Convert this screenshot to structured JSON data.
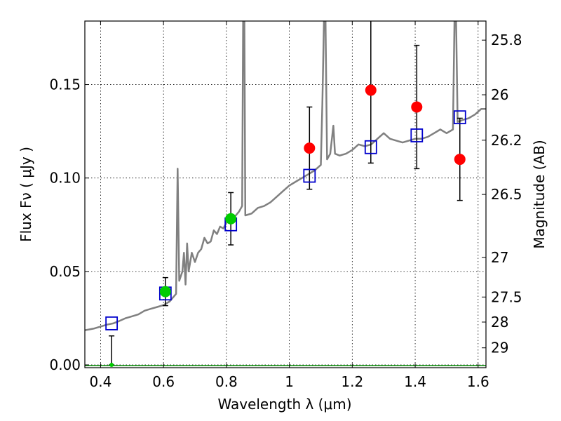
{
  "chart_data": {
    "type": "scatter",
    "xlabel": "Wavelength  λ (μm)",
    "ylabel": "Flux  Fν  ( μJy )",
    "ylabel_right": "Magnitude (AB)",
    "xlim": [
      0.35,
      1.625
    ],
    "ylim": [
      -0.0015,
      0.184
    ],
    "grid": true,
    "x_ticks": [
      {
        "value": 0.4,
        "label": "0.4"
      },
      {
        "value": 0.6,
        "label": "0.6"
      },
      {
        "value": 0.8,
        "label": "0.8"
      },
      {
        "value": 1.0,
        "label": "1"
      },
      {
        "value": 1.2,
        "label": "1.2"
      },
      {
        "value": 1.4,
        "label": "1.4"
      },
      {
        "value": 1.6,
        "label": "1.6"
      }
    ],
    "y_ticks": [
      {
        "value": 0.0,
        "label": "0.00"
      },
      {
        "value": 0.05,
        "label": "0.05"
      },
      {
        "value": 0.1,
        "label": "0.10"
      },
      {
        "value": 0.15,
        "label": "0.15"
      }
    ],
    "right_ticks": [
      {
        "value": 25.8,
        "label": "25.8"
      },
      {
        "value": 26.0,
        "label": "26"
      },
      {
        "value": 26.2,
        "label": "26.2"
      },
      {
        "value": 26.5,
        "label": "26.5"
      },
      {
        "value": 27.0,
        "label": "27"
      },
      {
        "value": 27.5,
        "label": "27.5"
      },
      {
        "value": 28.0,
        "label": "28"
      },
      {
        "value": 29.0,
        "label": "29"
      }
    ],
    "model_spectrum": {
      "color": "#808080",
      "points": [
        [
          0.35,
          0.0185
        ],
        [
          0.38,
          0.0195
        ],
        [
          0.4,
          0.0205
        ],
        [
          0.42,
          0.0215
        ],
        [
          0.44,
          0.0222
        ],
        [
          0.46,
          0.0235
        ],
        [
          0.48,
          0.025
        ],
        [
          0.5,
          0.026
        ],
        [
          0.52,
          0.027
        ],
        [
          0.54,
          0.029
        ],
        [
          0.56,
          0.03
        ],
        [
          0.58,
          0.031
        ],
        [
          0.6,
          0.032
        ],
        [
          0.62,
          0.034
        ],
        [
          0.63,
          0.036
        ],
        [
          0.64,
          0.038
        ],
        [
          0.645,
          0.105
        ],
        [
          0.65,
          0.045
        ],
        [
          0.66,
          0.05
        ],
        [
          0.665,
          0.06
        ],
        [
          0.67,
          0.043
        ],
        [
          0.675,
          0.065
        ],
        [
          0.68,
          0.05
        ],
        [
          0.69,
          0.06
        ],
        [
          0.7,
          0.055
        ],
        [
          0.71,
          0.06
        ],
        [
          0.72,
          0.062
        ],
        [
          0.73,
          0.068
        ],
        [
          0.74,
          0.065
        ],
        [
          0.75,
          0.066
        ],
        [
          0.76,
          0.072
        ],
        [
          0.77,
          0.07
        ],
        [
          0.78,
          0.074
        ],
        [
          0.79,
          0.073
        ],
        [
          0.8,
          0.076
        ],
        [
          0.81,
          0.078
        ],
        [
          0.82,
          0.078
        ],
        [
          0.83,
          0.08
        ],
        [
          0.84,
          0.082
        ],
        [
          0.85,
          0.085
        ],
        [
          0.853,
          0.184
        ],
        [
          0.857,
          0.184
        ],
        [
          0.86,
          0.08
        ],
        [
          0.88,
          0.081
        ],
        [
          0.9,
          0.084
        ],
        [
          0.92,
          0.085
        ],
        [
          0.94,
          0.087
        ],
        [
          0.96,
          0.09
        ],
        [
          0.98,
          0.093
        ],
        [
          1.0,
          0.096
        ],
        [
          1.02,
          0.098
        ],
        [
          1.04,
          0.1
        ],
        [
          1.06,
          0.102
        ],
        [
          1.08,
          0.104
        ],
        [
          1.1,
          0.107
        ],
        [
          1.105,
          0.14
        ],
        [
          1.11,
          0.184
        ],
        [
          1.115,
          0.184
        ],
        [
          1.12,
          0.11
        ],
        [
          1.13,
          0.113
        ],
        [
          1.14,
          0.128
        ],
        [
          1.145,
          0.113
        ],
        [
          1.16,
          0.112
        ],
        [
          1.18,
          0.113
        ],
        [
          1.2,
          0.115
        ],
        [
          1.22,
          0.118
        ],
        [
          1.24,
          0.117
        ],
        [
          1.26,
          0.118
        ],
        [
          1.28,
          0.121
        ],
        [
          1.3,
          0.124
        ],
        [
          1.32,
          0.121
        ],
        [
          1.34,
          0.12
        ],
        [
          1.36,
          0.119
        ],
        [
          1.38,
          0.12
        ],
        [
          1.4,
          0.121
        ],
        [
          1.42,
          0.121
        ],
        [
          1.44,
          0.122
        ],
        [
          1.46,
          0.124
        ],
        [
          1.48,
          0.126
        ],
        [
          1.5,
          0.124
        ],
        [
          1.52,
          0.126
        ],
        [
          1.525,
          0.184
        ],
        [
          1.53,
          0.184
        ],
        [
          1.535,
          0.13
        ],
        [
          1.55,
          0.131
        ],
        [
          1.57,
          0.132
        ],
        [
          1.59,
          0.134
        ],
        [
          1.61,
          0.137
        ],
        [
          1.625,
          0.137
        ]
      ]
    },
    "series": [
      {
        "marker": "square-open",
        "color": "#0000cc",
        "points": [
          {
            "x": 0.435,
            "y": 0.0222
          },
          {
            "x": 0.606,
            "y": 0.0382
          },
          {
            "x": 0.814,
            "y": 0.0752
          },
          {
            "x": 1.064,
            "y": 0.1012
          },
          {
            "x": 1.259,
            "y": 0.1165
          },
          {
            "x": 1.405,
            "y": 0.1228
          },
          {
            "x": 1.542,
            "y": 0.1325
          }
        ]
      },
      {
        "marker": "circle",
        "color": "#00cc00",
        "points": [
          {
            "x": 0.435,
            "y": 0.0,
            "err_low": 0.0,
            "err_high": 0.0155
          },
          {
            "x": 0.606,
            "y": 0.0392,
            "err_low": 0.0075,
            "err_high": 0.0075
          },
          {
            "x": 0.814,
            "y": 0.0782,
            "err_low": 0.014,
            "err_high": 0.014
          }
        ]
      },
      {
        "marker": "circle",
        "color": "#ff0000",
        "points": [
          {
            "x": 1.064,
            "y": 0.116,
            "err_low": 0.022,
            "err_high": 0.022
          },
          {
            "x": 1.259,
            "y": 0.147,
            "err_low": 0.039,
            "err_high": 0.039
          },
          {
            "x": 1.405,
            "y": 0.138,
            "err_low": 0.033,
            "err_high": 0.033
          },
          {
            "x": 1.542,
            "y": 0.11,
            "err_low": 0.022,
            "err_high": 0.022
          }
        ]
      }
    ],
    "zero_line_color": "#008800"
  }
}
